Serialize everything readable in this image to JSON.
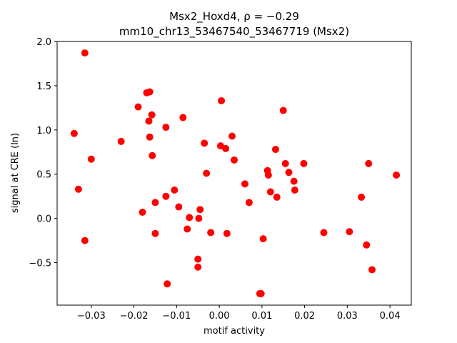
{
  "chart_data": {
    "type": "scatter",
    "title_line1": "Msx2_Hoxd4, ρ = −0.29",
    "title_line2": "mm10_chr13_53467540_53467719 (Msx2)",
    "xlabel": "motif activity",
    "ylabel": "signal at CRE (ln)",
    "xlim": [
      -0.038,
      0.045
    ],
    "ylim": [
      -0.98,
      2.0
    ],
    "grid": false,
    "xticks": [
      {
        "v": -0.03,
        "label": "−0.03"
      },
      {
        "v": -0.02,
        "label": "−0.02"
      },
      {
        "v": -0.01,
        "label": "−0.01"
      },
      {
        "v": 0.0,
        "label": "0.00"
      },
      {
        "v": 0.01,
        "label": "0.01"
      },
      {
        "v": 0.02,
        "label": "0.02"
      },
      {
        "v": 0.03,
        "label": "0.03"
      },
      {
        "v": 0.04,
        "label": "0.04"
      }
    ],
    "yticks": [
      {
        "v": -0.5,
        "label": "−0.5"
      },
      {
        "v": 0.0,
        "label": "0.0"
      },
      {
        "v": 0.5,
        "label": "0.5"
      },
      {
        "v": 1.0,
        "label": "1.0"
      },
      {
        "v": 1.5,
        "label": "1.5"
      },
      {
        "v": 2.0,
        "label": "2.0"
      }
    ],
    "marker_color": "#ff0000",
    "points": [
      [
        -0.0315,
        1.87
      ],
      [
        -0.034,
        0.96
      ],
      [
        -0.033,
        0.33
      ],
      [
        -0.03,
        0.67
      ],
      [
        -0.0315,
        -0.25
      ],
      [
        -0.023,
        0.87
      ],
      [
        -0.019,
        1.26
      ],
      [
        -0.018,
        0.07
      ],
      [
        -0.017,
        1.42
      ],
      [
        -0.0163,
        1.43
      ],
      [
        -0.0165,
        1.1
      ],
      [
        -0.0163,
        0.92
      ],
      [
        -0.0158,
        1.17
      ],
      [
        -0.0157,
        0.71
      ],
      [
        -0.015,
        0.18
      ],
      [
        -0.015,
        -0.17
      ],
      [
        -0.0125,
        1.03
      ],
      [
        -0.0125,
        0.25
      ],
      [
        -0.0122,
        -0.74
      ],
      [
        -0.0105,
        0.32
      ],
      [
        -0.0095,
        0.13
      ],
      [
        -0.0085,
        1.14
      ],
      [
        -0.0075,
        -0.12
      ],
      [
        -0.007,
        0.01
      ],
      [
        -0.005,
        -0.46
      ],
      [
        -0.005,
        -0.55
      ],
      [
        -0.0048,
        0.0
      ],
      [
        -0.0045,
        0.1
      ],
      [
        -0.0035,
        0.85
      ],
      [
        -0.003,
        0.51
      ],
      [
        -0.002,
        -0.16
      ],
      [
        0.0003,
        0.82
      ],
      [
        0.0005,
        1.33
      ],
      [
        0.0015,
        0.79
      ],
      [
        0.0018,
        -0.17
      ],
      [
        0.003,
        0.93
      ],
      [
        0.0035,
        0.66
      ],
      [
        0.006,
        0.39
      ],
      [
        0.007,
        0.18
      ],
      [
        0.0095,
        -0.85
      ],
      [
        0.0098,
        -0.85
      ],
      [
        0.0103,
        -0.23
      ],
      [
        0.0113,
        0.54
      ],
      [
        0.0115,
        0.49
      ],
      [
        0.012,
        0.3
      ],
      [
        0.0132,
        0.78
      ],
      [
        0.0135,
        0.24
      ],
      [
        0.015,
        1.22
      ],
      [
        0.0155,
        0.62
      ],
      [
        0.0163,
        0.52
      ],
      [
        0.0175,
        0.42
      ],
      [
        0.0177,
        0.32
      ],
      [
        0.0198,
        0.62
      ],
      [
        0.0245,
        -0.16
      ],
      [
        0.0305,
        -0.15
      ],
      [
        0.0333,
        0.24
      ],
      [
        0.0345,
        -0.3
      ],
      [
        0.035,
        0.62
      ],
      [
        0.0358,
        -0.58
      ],
      [
        0.0415,
        0.49
      ]
    ]
  }
}
